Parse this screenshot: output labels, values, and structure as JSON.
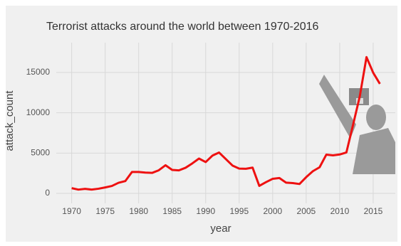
{
  "chart_data": {
    "type": "line",
    "title": "Terrorist attacks around the world between 1970-2016",
    "x_label": "year",
    "y_label": "attack_count",
    "x": [
      1970,
      1971,
      1972,
      1973,
      1974,
      1975,
      1976,
      1977,
      1978,
      1979,
      1980,
      1981,
      1982,
      1983,
      1984,
      1985,
      1986,
      1987,
      1988,
      1989,
      1990,
      1991,
      1992,
      1994,
      1995,
      1996,
      1997,
      1998,
      1999,
      2000,
      2001,
      2002,
      2003,
      2004,
      2005,
      2006,
      2007,
      2008,
      2009,
      2010,
      2011,
      2012,
      2013,
      2014,
      2015,
      2016
    ],
    "series": [
      {
        "name": "attack_count",
        "color": "#ee1111",
        "values": [
          651,
          471,
          568,
          473,
          581,
          740,
          923,
          1319,
          1526,
          2662,
          2662,
          2586,
          2544,
          2870,
          3495,
          2915,
          2860,
          3183,
          3721,
          4324,
          3887,
          4683,
          5071,
          3456,
          3081,
          3058,
          3197,
          934,
          1395,
          1814,
          1906,
          1333,
          1278,
          1166,
          2017,
          2758,
          3242,
          4805,
          4721,
          4826,
          5076,
          8522,
          12036,
          16903,
          14965,
          13587
        ]
      }
    ],
    "xlim": [
      1967.7,
      2018.3
    ],
    "xticks": [
      1970,
      1975,
      1980,
      1985,
      1990,
      1995,
      2000,
      2005,
      2010,
      2015
    ],
    "ylim": [
      -350,
      17725
    ],
    "yticks": [
      0,
      5000,
      10000,
      15000
    ],
    "grid": true
  }
}
